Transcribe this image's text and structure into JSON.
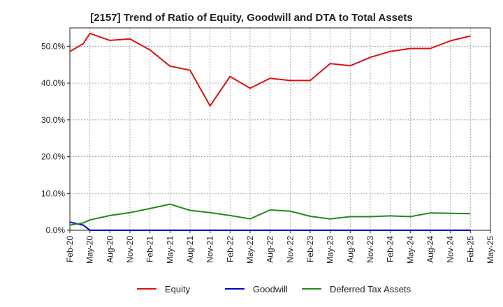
{
  "chart_data": {
    "type": "line",
    "title": "[2157]  Trend of Ratio of Equity, Goodwill and DTA to Total Assets",
    "xlabel": "",
    "ylabel": "",
    "x_ticks": [
      "Feb-20",
      "May-20",
      "Aug-20",
      "Nov-20",
      "Feb-21",
      "May-21",
      "Aug-21",
      "Nov-21",
      "Feb-22",
      "May-22",
      "Aug-22",
      "Nov-22",
      "Feb-23",
      "May-23",
      "Aug-23",
      "Nov-23",
      "Feb-24",
      "May-24",
      "Aug-24",
      "Nov-24",
      "Feb-25",
      "May-25"
    ],
    "y_ticks": [
      "0.0%",
      "10.0%",
      "20.0%",
      "30.0%",
      "40.0%",
      "50.0%"
    ],
    "y_tick_values": [
      0,
      10,
      20,
      30,
      40,
      50
    ],
    "ylim": [
      0,
      55
    ],
    "grid": true,
    "legend_position": "bottom",
    "series": [
      {
        "name": "Equity",
        "color": "#dd1111",
        "points": [
          {
            "x": "Feb-20",
            "y": 48.6
          },
          {
            "x": "Apr-20",
            "y": 50.7
          },
          {
            "x": "May-20",
            "y": 53.5
          },
          {
            "x": "Aug-20",
            "y": 51.6
          },
          {
            "x": "Nov-20",
            "y": 52.0
          },
          {
            "x": "Feb-21",
            "y": 49.0
          },
          {
            "x": "May-21",
            "y": 44.6
          },
          {
            "x": "Aug-21",
            "y": 43.5
          },
          {
            "x": "Nov-21",
            "y": 33.8
          },
          {
            "x": "Feb-22",
            "y": 41.8
          },
          {
            "x": "May-22",
            "y": 38.6
          },
          {
            "x": "Aug-22",
            "y": 41.3
          },
          {
            "x": "Nov-22",
            "y": 40.7
          },
          {
            "x": "Feb-23",
            "y": 40.7
          },
          {
            "x": "May-23",
            "y": 45.3
          },
          {
            "x": "Aug-23",
            "y": 44.7
          },
          {
            "x": "Nov-23",
            "y": 47.0
          },
          {
            "x": "Feb-24",
            "y": 48.6
          },
          {
            "x": "May-24",
            "y": 49.4
          },
          {
            "x": "Aug-24",
            "y": 49.4
          },
          {
            "x": "Nov-24",
            "y": 51.5
          },
          {
            "x": "Feb-25",
            "y": 52.8
          }
        ]
      },
      {
        "name": "Goodwill",
        "color": "#0000cc",
        "points": [
          {
            "x": "Feb-20",
            "y": 2.2
          },
          {
            "x": "Apr-20",
            "y": 1.4
          },
          {
            "x": "May-20",
            "y": 0.0
          },
          {
            "x": "Aug-20",
            "y": 0.0
          },
          {
            "x": "Nov-20",
            "y": 0.0
          },
          {
            "x": "Feb-21",
            "y": 0.0
          },
          {
            "x": "May-21",
            "y": 0.0
          },
          {
            "x": "Aug-21",
            "y": 0.0
          },
          {
            "x": "Nov-21",
            "y": 0.0
          },
          {
            "x": "Feb-22",
            "y": 0.0
          },
          {
            "x": "May-22",
            "y": 0.0
          },
          {
            "x": "Aug-22",
            "y": 0.0
          },
          {
            "x": "Nov-22",
            "y": 0.0
          },
          {
            "x": "Feb-23",
            "y": 0.0
          },
          {
            "x": "May-23",
            "y": 0.0
          },
          {
            "x": "Aug-23",
            "y": 0.0
          },
          {
            "x": "Nov-23",
            "y": 0.0
          },
          {
            "x": "Feb-24",
            "y": 0.0
          },
          {
            "x": "May-24",
            "y": 0.0
          },
          {
            "x": "Aug-24",
            "y": 0.0
          },
          {
            "x": "Nov-24",
            "y": 0.0
          },
          {
            "x": "Feb-25",
            "y": 0.0
          }
        ]
      },
      {
        "name": "Deferred Tax Assets",
        "color": "#228822",
        "points": [
          {
            "x": "Feb-20",
            "y": 1.4
          },
          {
            "x": "Apr-20",
            "y": 2.0
          },
          {
            "x": "May-20",
            "y": 2.8
          },
          {
            "x": "Aug-20",
            "y": 4.0
          },
          {
            "x": "Nov-20",
            "y": 4.8
          },
          {
            "x": "Feb-21",
            "y": 5.9
          },
          {
            "x": "May-21",
            "y": 7.1
          },
          {
            "x": "Aug-21",
            "y": 5.4
          },
          {
            "x": "Nov-21",
            "y": 4.8
          },
          {
            "x": "Feb-22",
            "y": 4.0
          },
          {
            "x": "May-22",
            "y": 3.1
          },
          {
            "x": "Aug-22",
            "y": 5.5
          },
          {
            "x": "Nov-22",
            "y": 5.2
          },
          {
            "x": "Feb-23",
            "y": 3.8
          },
          {
            "x": "May-23",
            "y": 3.1
          },
          {
            "x": "Aug-23",
            "y": 3.7
          },
          {
            "x": "Nov-23",
            "y": 3.7
          },
          {
            "x": "Feb-24",
            "y": 3.9
          },
          {
            "x": "May-24",
            "y": 3.7
          },
          {
            "x": "Aug-24",
            "y": 4.7
          },
          {
            "x": "Nov-24",
            "y": 4.6
          },
          {
            "x": "Feb-25",
            "y": 4.5
          }
        ]
      }
    ]
  }
}
